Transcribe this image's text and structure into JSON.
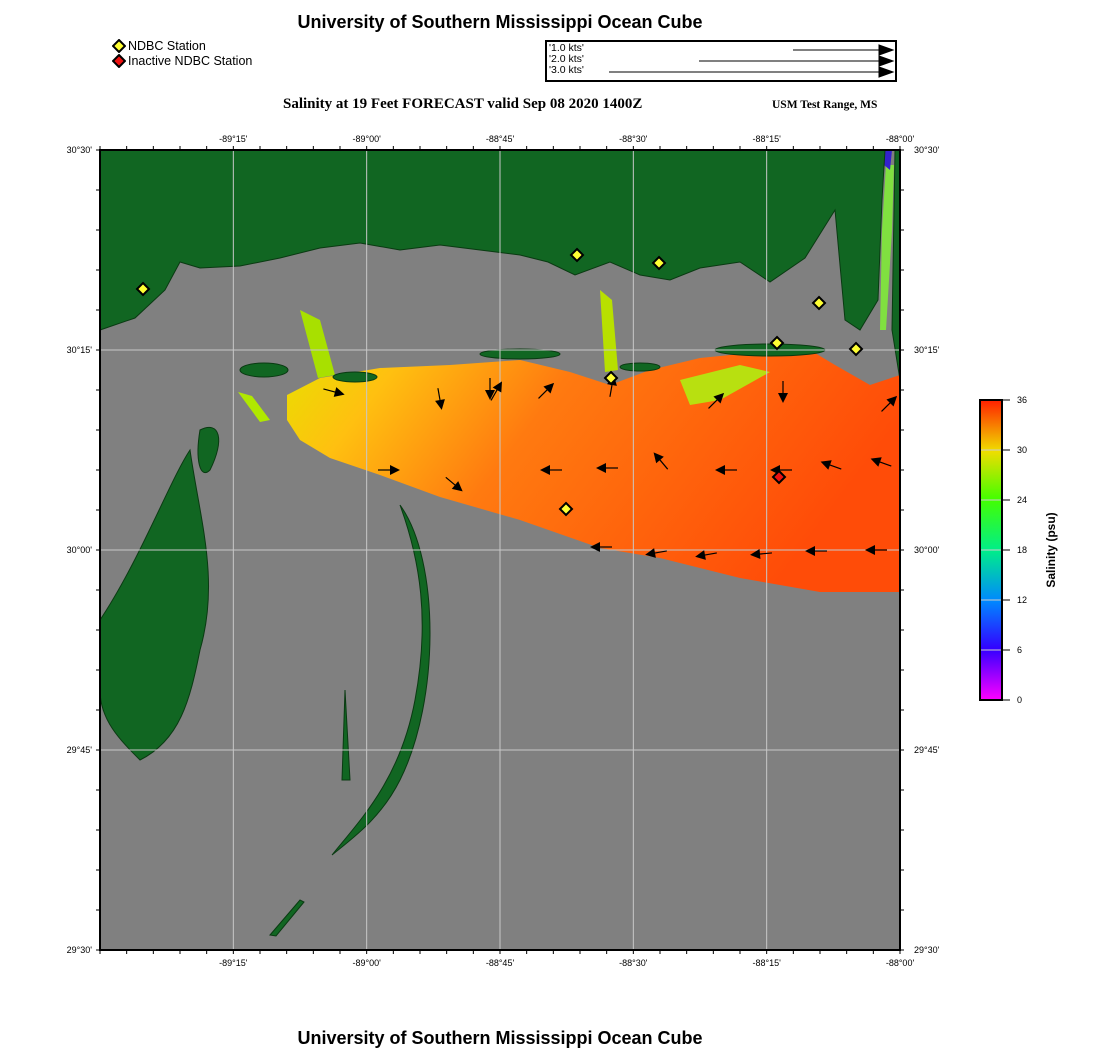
{
  "header": {
    "title": "University of Southern Mississippi Ocean Cube",
    "subtitle": "Salinity at 19 Feet FORECAST valid Sep 08 2020 1400Z",
    "region": "USM Test Range, MS"
  },
  "footer": {
    "title": "University of Southern Mississippi Ocean Cube"
  },
  "legend": {
    "stations": [
      {
        "label": "NDBC Station",
        "color": "#ffff33"
      },
      {
        "label": "Inactive NDBC Station",
        "color": "#ee1111"
      }
    ],
    "vectors": [
      "'1.0 kts'",
      "'2.0 kts'",
      "'3.0 kts'"
    ]
  },
  "map": {
    "lon_range": [
      -89.5,
      -88.0
    ],
    "lat_range": [
      29.5,
      30.5
    ],
    "x_ticks": [
      "-89°15'",
      "-89°00'",
      "-88°45'",
      "-88°30'",
      "-88°15'",
      "-88°00'"
    ],
    "y_ticks": [
      "30°30'",
      "30°15'",
      "30°00'",
      "29°45'",
      "29°30'"
    ],
    "colors": {
      "land": "#116622",
      "water": "#808080"
    }
  },
  "colorbar": {
    "label": "Salinity (psu)",
    "ticks": [
      "36",
      "30",
      "24",
      "18",
      "12",
      "6",
      "0"
    ],
    "range": [
      0,
      36
    ]
  }
}
